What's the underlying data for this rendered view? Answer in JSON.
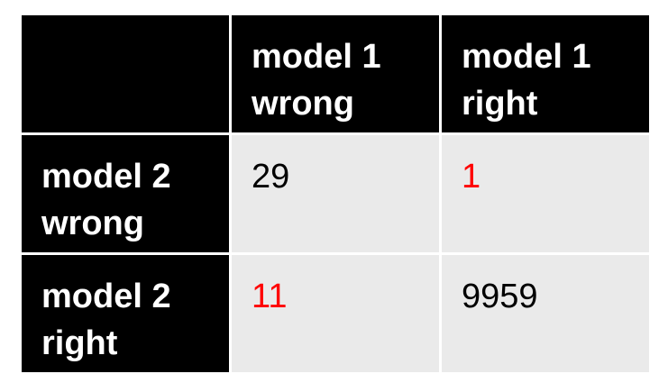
{
  "table": {
    "corner": "",
    "col_headers": [
      {
        "line1": "model 1",
        "line2": "wrong"
      },
      {
        "line1": "model 1",
        "line2": "right"
      }
    ],
    "rows": [
      {
        "header": {
          "line1": "model 2",
          "line2": "wrong"
        },
        "cells": [
          {
            "value": "29",
            "color": "#000000"
          },
          {
            "value": "1",
            "color": "#ff0000"
          }
        ]
      },
      {
        "header": {
          "line1": "model 2",
          "line2": "right"
        },
        "cells": [
          {
            "value": "11",
            "color": "#ff0000"
          },
          {
            "value": "9959",
            "color": "#000000"
          }
        ]
      }
    ]
  },
  "colors": {
    "header_bg": "#000000",
    "header_text": "#ffffff",
    "cell_bg": "#eaeaea",
    "highlight": "#ff0000"
  }
}
